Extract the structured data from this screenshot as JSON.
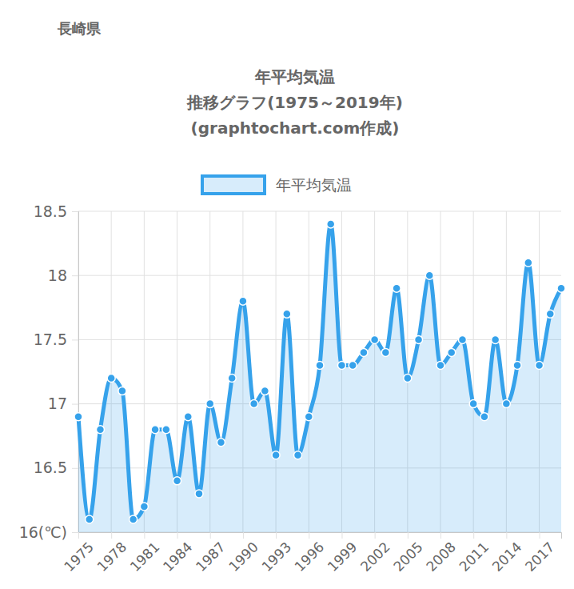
{
  "chart_data": {
    "type": "line",
    "subtitle": "長崎県",
    "title": [
      "年平均気温",
      "推移グラフ(1975～2019年)",
      "(graphtochart.com作成)"
    ],
    "categories": [
      "1975",
      null,
      null,
      "1978",
      null,
      null,
      "1981",
      null,
      null,
      "1984",
      null,
      null,
      "1987",
      null,
      null,
      "1990",
      null,
      null,
      "1993",
      null,
      null,
      "1996",
      null,
      null,
      "1999",
      null,
      null,
      "2002",
      null,
      null,
      "2005",
      null,
      null,
      "2008",
      null,
      null,
      "2011",
      null,
      null,
      "2014",
      null,
      null,
      "2017",
      null,
      null
    ],
    "series": [
      {
        "name": "年平均気温",
        "color": "#36a2eb",
        "marker": "circle",
        "values": [
          16.9,
          16.1,
          16.8,
          17.2,
          17.1,
          16.1,
          16.2,
          16.8,
          16.8,
          16.4,
          16.9,
          16.3,
          17.0,
          16.7,
          17.2,
          17.8,
          17.0,
          17.1,
          16.6,
          17.7,
          16.6,
          16.9,
          17.3,
          18.4,
          17.3,
          17.3,
          17.4,
          17.5,
          17.4,
          17.9,
          17.2,
          17.5,
          18.0,
          17.3,
          17.4,
          17.5,
          17.0,
          16.9,
          17.5,
          17.0,
          17.3,
          18.1,
          17.3,
          17.7,
          17.9
        ]
      }
    ],
    "ylim": [
      16,
      18.5
    ],
    "yticks": [
      {
        "value": 16,
        "label": "16(℃)"
      },
      16.5,
      17,
      17.5,
      18,
      18.5
    ],
    "grid": true,
    "legend": "top"
  }
}
